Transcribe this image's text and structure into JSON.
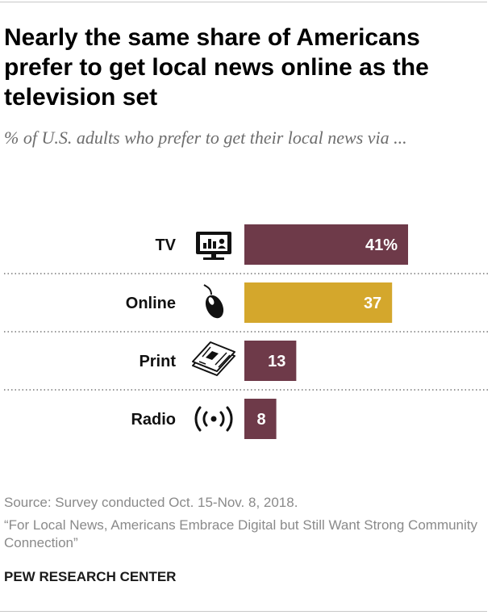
{
  "title": "Nearly the same share of Americans prefer to get local news online as the television set",
  "subtitle": "% of U.S. adults who prefer to get their local news via ...",
  "source": "Source: Survey conducted Oct. 15-Nov. 8, 2018.",
  "report": "“For Local News, Americans Embrace Digital but Still Want Strong Community Connection”",
  "brand": "PEW RESEARCH CENTER",
  "colors": {
    "primary_bar": "#6e3a49",
    "highlight_bar": "#d4a72c",
    "bar_label": "#ffffff"
  },
  "chart_data": {
    "type": "bar",
    "orientation": "horizontal",
    "title": "Nearly the same share of Americans prefer to get local news online as the television set",
    "subtitle": "% of U.S. adults who prefer to get their local news via ...",
    "categories": [
      "TV",
      "Online",
      "Print",
      "Radio"
    ],
    "values": [
      41,
      37,
      13,
      8
    ],
    "value_labels": [
      "41%",
      "37",
      "13",
      "8"
    ],
    "icons": [
      "tv-icon",
      "mouse-icon",
      "newspaper-icon",
      "radio-waves-icon"
    ],
    "highlight": [
      "Online"
    ],
    "xlim": [
      0,
      45
    ],
    "xlabel": "",
    "ylabel": "",
    "grid": false,
    "legend": "none"
  }
}
